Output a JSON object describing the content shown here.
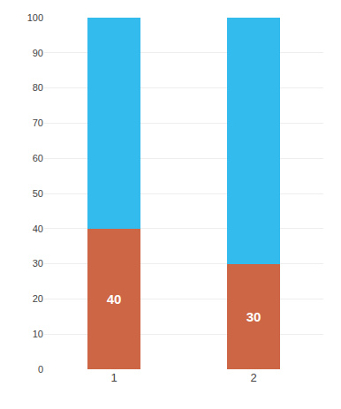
{
  "chart_data": {
    "type": "bar",
    "stacked": true,
    "categories": [
      "1",
      "2"
    ],
    "series": [
      {
        "color": "#CC6644",
        "values": [
          40,
          30
        ],
        "data_labels": true
      },
      {
        "color": "#33BBEE",
        "values": [
          60,
          70
        ]
      }
    ],
    "ylim": [
      0,
      100
    ],
    "yticks": [
      0,
      10,
      20,
      30,
      40,
      50,
      60,
      70,
      80,
      90,
      100
    ],
    "grid": true
  }
}
